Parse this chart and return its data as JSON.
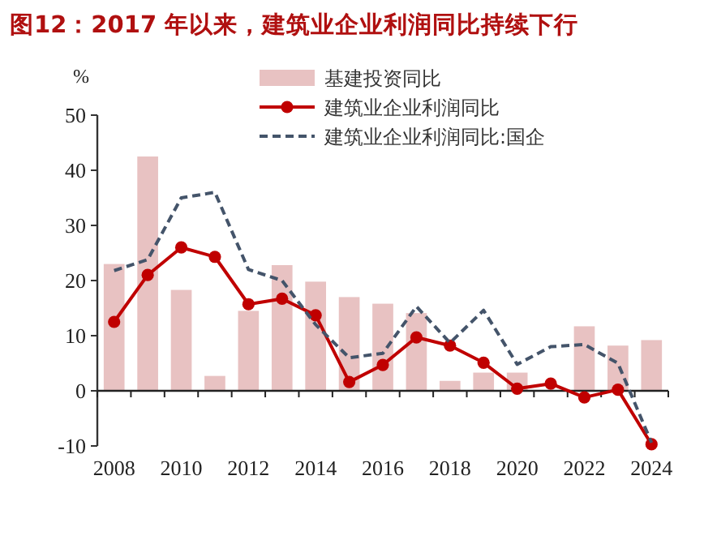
{
  "chart_data": {
    "type": "bar",
    "title": "图12：2017 年以来，建筑业企业利润同比持续下行",
    "ylabel": "%",
    "categories": [
      "2008",
      null,
      "2010",
      null,
      "2012",
      null,
      "2014",
      null,
      "2016",
      null,
      "2018",
      null,
      "2020",
      null,
      "2022",
      null,
      "2024"
    ],
    "series": [
      {
        "name": "基建投资同比",
        "color": "#e8c2c2",
        "values": [
          23,
          42.5,
          18.3,
          2.7,
          14.5,
          22.8,
          19.8,
          17,
          15.8,
          14.1,
          1.8,
          3.3,
          3.3,
          null,
          11.7,
          8.2,
          9.2
        ]
      },
      {
        "name": "建筑业企业利润同比",
        "type": "line",
        "color": "#c00000",
        "marker": "circle",
        "line_style": "solid",
        "values": [
          12.5,
          21,
          26,
          24.3,
          15.7,
          16.7,
          13.7,
          1.6,
          4.7,
          9.7,
          8.2,
          5.1,
          0.4,
          1.3,
          -1.2,
          0.2,
          -9.7
        ]
      },
      {
        "name": "建筑业企业利润同比:国企",
        "type": "line",
        "color": "#44546a",
        "marker": "none",
        "line_style": "dashed",
        "values": [
          21.8,
          23.8,
          35,
          36,
          22,
          20,
          12,
          6,
          6.8,
          15.3,
          8.7,
          14.6,
          4.8,
          8,
          8.4,
          5,
          -9.4
        ]
      }
    ],
    "ylim": [
      -10,
      50
    ],
    "yticks": [
      -10,
      0,
      10,
      20,
      30,
      40,
      50
    ],
    "legend": "top right"
  }
}
